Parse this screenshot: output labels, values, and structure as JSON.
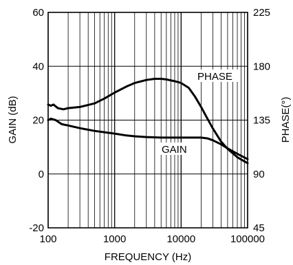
{
  "chart_data": {
    "type": "line",
    "xscale": "log",
    "xlim": [
      100,
      100000
    ],
    "ylim_left": [
      -20,
      60
    ],
    "ylim_right": [
      45,
      225
    ],
    "grid": true,
    "xlabel": "FREQUENCY (Hz)",
    "ylabel_left": "GAIN (dB)",
    "ylabel_right": "PHASE(°)",
    "x_ticks": [
      {
        "value": 100,
        "label": "100"
      },
      {
        "value": 1000,
        "label": "1000"
      },
      {
        "value": 10000,
        "label": "10000"
      },
      {
        "value": 100000,
        "label": "100000"
      }
    ],
    "y_ticks_left": [
      {
        "value": -20,
        "label": "-20"
      },
      {
        "value": 0,
        "label": "0"
      },
      {
        "value": 20,
        "label": "20"
      },
      {
        "value": 40,
        "label": "40"
      },
      {
        "value": 60,
        "label": "60"
      }
    ],
    "y_ticks_right": [
      {
        "value": 45,
        "label": "45"
      },
      {
        "value": 90,
        "label": "90"
      },
      {
        "value": 135,
        "label": "135"
      },
      {
        "value": 180,
        "label": "180"
      },
      {
        "value": 225,
        "label": "225"
      }
    ],
    "series": [
      {
        "name": "PHASE",
        "axis": "right",
        "points": [
          [
            100,
            148
          ],
          [
            110,
            147
          ],
          [
            120,
            148
          ],
          [
            140,
            145
          ],
          [
            170,
            144
          ],
          [
            200,
            145
          ],
          [
            300,
            146
          ],
          [
            500,
            149
          ],
          [
            700,
            153
          ],
          [
            1000,
            158
          ],
          [
            1500,
            163
          ],
          [
            2000,
            166
          ],
          [
            3000,
            168.5
          ],
          [
            4000,
            169.5
          ],
          [
            5000,
            169.5
          ],
          [
            6000,
            169
          ],
          [
            8000,
            167.5
          ],
          [
            10000,
            166
          ],
          [
            13000,
            162
          ],
          [
            16000,
            155
          ],
          [
            20000,
            146
          ],
          [
            25000,
            136
          ],
          [
            30000,
            128
          ],
          [
            40000,
            117
          ],
          [
            50000,
            111
          ],
          [
            70000,
            104
          ],
          [
            100000,
            99
          ]
        ]
      },
      {
        "name": "GAIN",
        "axis": "left",
        "points": [
          [
            100,
            20
          ],
          [
            110,
            20.5
          ],
          [
            130,
            20
          ],
          [
            160,
            18.5
          ],
          [
            200,
            18
          ],
          [
            300,
            17
          ],
          [
            500,
            16
          ],
          [
            700,
            15.5
          ],
          [
            1000,
            15
          ],
          [
            1500,
            14.3
          ],
          [
            2000,
            14
          ],
          [
            3000,
            13.7
          ],
          [
            5000,
            13.5
          ],
          [
            10000,
            13.5
          ],
          [
            20000,
            13.5
          ],
          [
            25000,
            13.2
          ],
          [
            30000,
            12.5
          ],
          [
            40000,
            11
          ],
          [
            50000,
            9.5
          ],
          [
            70000,
            7.5
          ],
          [
            100000,
            5.5
          ]
        ]
      }
    ],
    "annotations": [
      "PHASE",
      "GAIN"
    ]
  }
}
